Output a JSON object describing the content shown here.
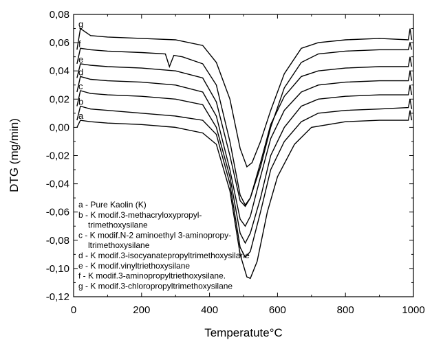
{
  "chart_data": {
    "type": "line",
    "title": "",
    "xlabel": "Temperatute°C",
    "ylabel": "DTG (mg/min)",
    "xlim": [
      0,
      1000
    ],
    "ylim": [
      -0.12,
      0.08
    ],
    "xticks": [
      0,
      200,
      400,
      600,
      800,
      1000
    ],
    "xtick_labels": [
      "0",
      "200",
      "400",
      "600",
      "800",
      "1000"
    ],
    "yticks": [
      0.08,
      0.06,
      0.04,
      0.02,
      0.0,
      -0.02,
      -0.04,
      -0.06,
      -0.08,
      -0.1,
      -0.12
    ],
    "ytick_labels": [
      "0,08",
      "0,06",
      "0,04",
      "0,02",
      "0,00",
      "-0,02",
      "-0,04",
      "-0,06",
      "-0,08",
      "-0,10",
      "-0,12"
    ],
    "grid": false,
    "legend": {
      "placement": "bottom-left",
      "lines": [
        "a - Pure Kaolin (K)",
        "b - K modif.3-methacryloxypropyl-",
        "trimethoxysilane",
        "c - K modif.N-2 aminoethyl 3-aminopropy-",
        "ltrimethoxysilane",
        "d - K modif.3-isocyanatepropyltrimethoxysilane",
        "e - K modif.vinyltriethoxysilane",
        "f -  K modif.3-aminopropyltriethoxysilane.",
        "g - K modif.3-chloropropyltrimethoxysilane"
      ]
    },
    "series": [
      {
        "label": "a",
        "x": [
          10,
          20,
          50,
          100,
          200,
          300,
          380,
          420,
          460,
          490,
          510,
          520,
          540,
          570,
          600,
          650,
          700,
          800,
          900,
          985,
          990,
          995
        ],
        "values": [
          0.0,
          0.005,
          0.004,
          0.003,
          0.002,
          0.0,
          -0.004,
          -0.012,
          -0.045,
          -0.09,
          -0.106,
          -0.107,
          -0.095,
          -0.06,
          -0.035,
          -0.012,
          0.0,
          0.004,
          0.005,
          0.005,
          0.012,
          0.005
        ]
      },
      {
        "label": "b",
        "x": [
          10,
          20,
          50,
          100,
          200,
          300,
          380,
          420,
          460,
          490,
          505,
          520,
          550,
          580,
          620,
          670,
          720,
          800,
          900,
          985,
          990,
          995
        ],
        "values": [
          0.005,
          0.015,
          0.013,
          0.012,
          0.01,
          0.008,
          0.005,
          -0.005,
          -0.04,
          -0.085,
          -0.092,
          -0.088,
          -0.06,
          -0.03,
          -0.01,
          0.004,
          0.01,
          0.012,
          0.013,
          0.014,
          0.02,
          0.013
        ]
      },
      {
        "label": "c",
        "x": [
          10,
          20,
          50,
          100,
          200,
          300,
          380,
          420,
          460,
          490,
          505,
          520,
          550,
          580,
          620,
          670,
          720,
          800,
          900,
          985,
          990,
          995
        ],
        "values": [
          0.015,
          0.026,
          0.024,
          0.023,
          0.022,
          0.02,
          0.016,
          0.0,
          -0.035,
          -0.075,
          -0.082,
          -0.075,
          -0.05,
          -0.02,
          0.0,
          0.015,
          0.02,
          0.022,
          0.023,
          0.023,
          0.03,
          0.023
        ]
      },
      {
        "label": "d",
        "x": [
          10,
          20,
          50,
          100,
          200,
          300,
          380,
          420,
          460,
          490,
          505,
          520,
          550,
          580,
          620,
          670,
          720,
          800,
          900,
          985,
          990,
          995
        ],
        "values": [
          0.025,
          0.036,
          0.034,
          0.033,
          0.032,
          0.03,
          0.025,
          0.008,
          -0.03,
          -0.065,
          -0.07,
          -0.063,
          -0.035,
          -0.008,
          0.012,
          0.025,
          0.03,
          0.032,
          0.033,
          0.033,
          0.04,
          0.033
        ]
      },
      {
        "label": "e",
        "x": [
          10,
          20,
          50,
          100,
          200,
          300,
          380,
          420,
          460,
          490,
          505,
          520,
          550,
          580,
          620,
          670,
          720,
          800,
          900,
          985,
          990,
          995
        ],
        "values": [
          0.035,
          0.045,
          0.044,
          0.043,
          0.042,
          0.04,
          0.035,
          0.018,
          -0.02,
          -0.052,
          -0.056,
          -0.05,
          -0.025,
          0.002,
          0.022,
          0.036,
          0.04,
          0.042,
          0.043,
          0.043,
          0.05,
          0.043
        ]
      },
      {
        "label": "f",
        "x": [
          10,
          20,
          50,
          100,
          200,
          270,
          282,
          295,
          320,
          380,
          420,
          460,
          490,
          505,
          520,
          550,
          580,
          620,
          670,
          720,
          800,
          900,
          985,
          990,
          995
        ],
        "values": [
          0.045,
          0.056,
          0.055,
          0.054,
          0.053,
          0.052,
          0.043,
          0.051,
          0.05,
          0.045,
          0.03,
          -0.01,
          -0.048,
          -0.055,
          -0.05,
          -0.028,
          0.0,
          0.028,
          0.046,
          0.052,
          0.054,
          0.055,
          0.055,
          0.06,
          0.055
        ]
      },
      {
        "label": "g",
        "x": [
          10,
          20,
          50,
          100,
          200,
          300,
          380,
          420,
          460,
          490,
          510,
          525,
          550,
          580,
          620,
          670,
          720,
          800,
          900,
          985,
          990,
          995
        ],
        "values": [
          0.055,
          0.07,
          0.065,
          0.064,
          0.063,
          0.062,
          0.058,
          0.046,
          0.02,
          -0.015,
          -0.028,
          -0.025,
          -0.01,
          0.012,
          0.038,
          0.056,
          0.06,
          0.062,
          0.063,
          0.062,
          0.07,
          0.062
        ]
      }
    ]
  }
}
